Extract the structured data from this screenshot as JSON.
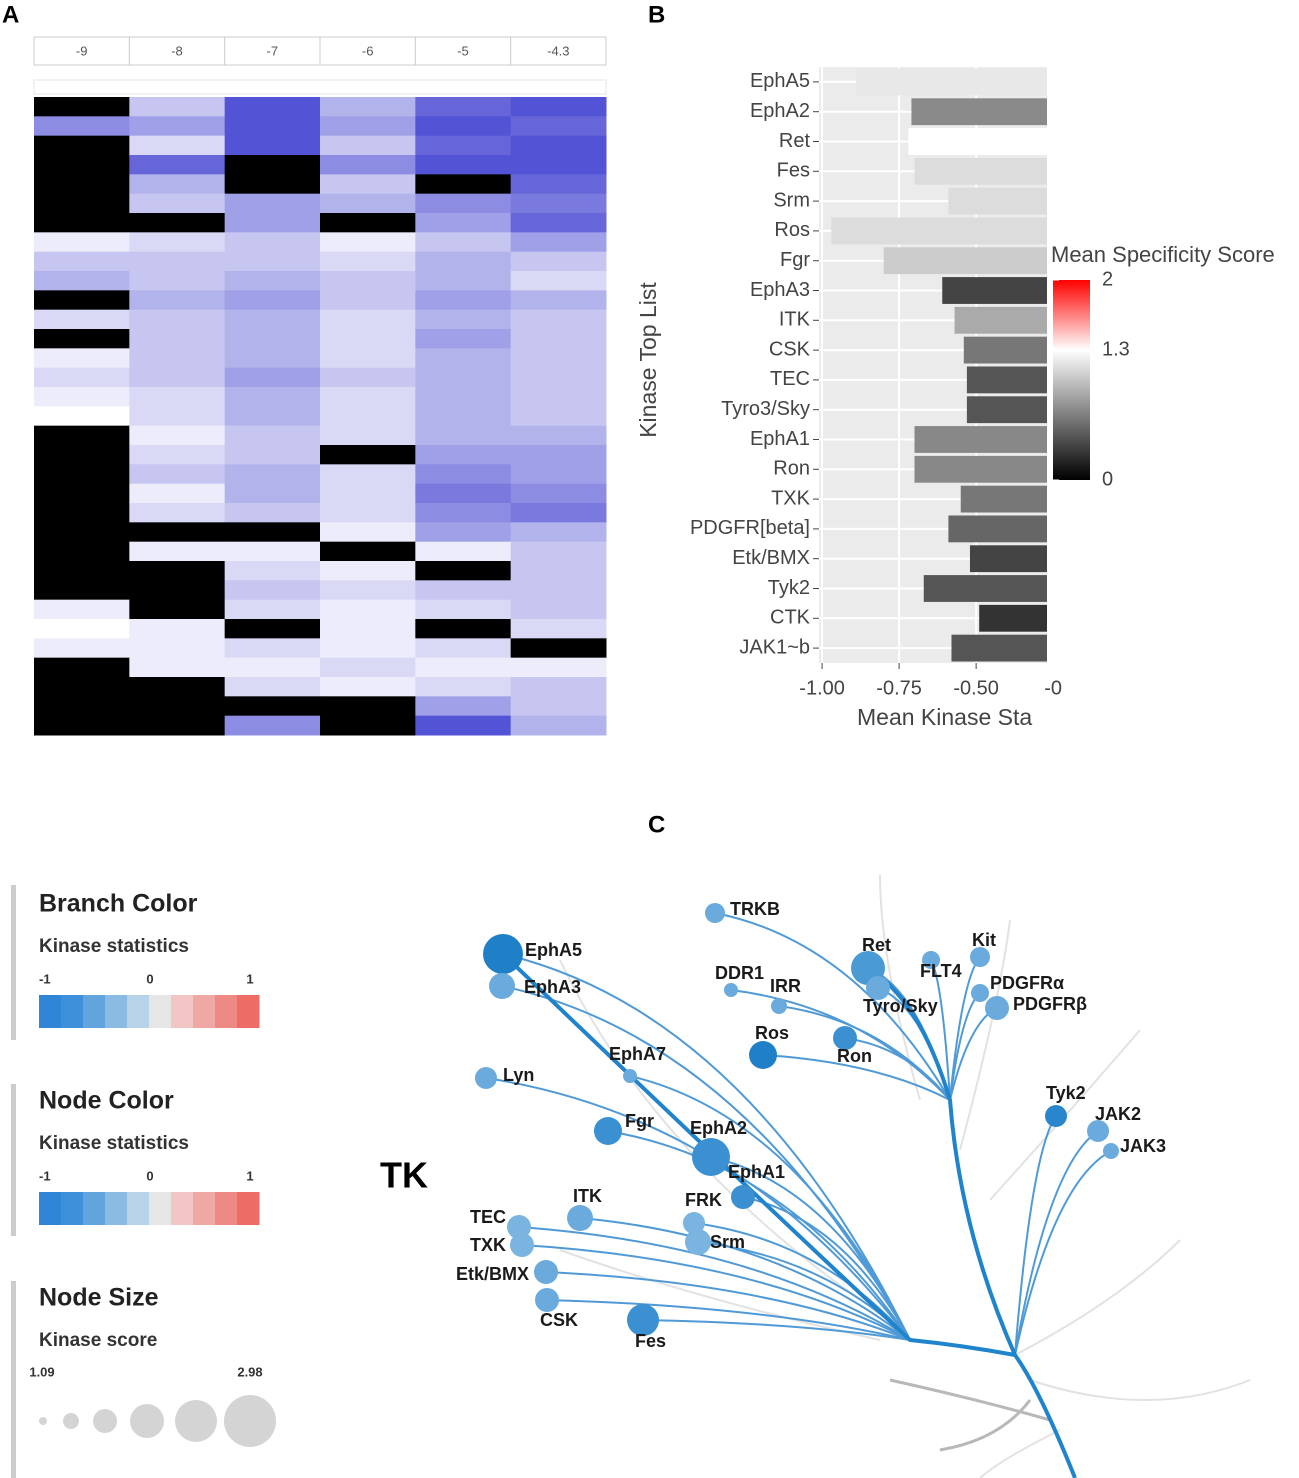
{
  "chart_data": [
    {
      "type": "heatmap",
      "panel": "A",
      "categories": [
        "-9",
        "-8",
        "-7",
        "-6",
        "-5",
        "-4.3"
      ],
      "low_color": "#ffffff",
      "high_color": "#4040d0",
      "missing_color": "#000000",
      "matrix": [
        [
          null,
          0.3,
          0.9,
          0.4,
          0.8,
          0.9
        ],
        [
          0.6,
          0.5,
          0.9,
          0.5,
          0.9,
          0.8
        ],
        [
          null,
          0.2,
          0.9,
          0.3,
          0.8,
          0.9
        ],
        [
          null,
          0.8,
          null,
          0.6,
          0.9,
          0.9
        ],
        [
          null,
          0.4,
          null,
          0.3,
          null,
          0.8
        ],
        [
          null,
          0.3,
          0.5,
          0.4,
          0.6,
          0.7
        ],
        [
          null,
          null,
          0.5,
          null,
          0.5,
          0.8
        ],
        [
          0.1,
          0.2,
          0.3,
          0.1,
          0.3,
          0.5
        ],
        [
          0.3,
          0.3,
          0.3,
          0.2,
          0.4,
          0.3
        ],
        [
          0.4,
          0.3,
          0.4,
          0.3,
          0.4,
          0.2
        ],
        [
          null,
          0.4,
          0.5,
          0.3,
          0.5,
          0.4
        ],
        [
          0.2,
          0.3,
          0.4,
          0.2,
          0.4,
          0.3
        ],
        [
          null,
          0.3,
          0.4,
          0.2,
          0.5,
          0.3
        ],
        [
          0.1,
          0.3,
          0.4,
          0.2,
          0.4,
          0.3
        ],
        [
          0.2,
          0.3,
          0.5,
          0.3,
          0.4,
          0.3
        ],
        [
          0.1,
          0.2,
          0.4,
          0.2,
          0.4,
          0.3
        ],
        [
          0.0,
          0.2,
          0.4,
          0.2,
          0.4,
          0.3
        ],
        [
          null,
          0.1,
          0.3,
          0.2,
          0.4,
          0.4
        ],
        [
          null,
          0.2,
          0.3,
          null,
          0.5,
          0.5
        ],
        [
          null,
          0.3,
          0.4,
          0.2,
          0.6,
          0.5
        ],
        [
          null,
          0.1,
          0.4,
          0.2,
          0.7,
          0.6
        ],
        [
          null,
          0.2,
          0.3,
          0.2,
          0.6,
          0.7
        ],
        [
          null,
          null,
          null,
          0.1,
          0.5,
          0.4
        ],
        [
          null,
          0.1,
          0.1,
          null,
          0.1,
          0.3
        ],
        [
          null,
          null,
          0.2,
          0.1,
          null,
          0.3
        ],
        [
          null,
          null,
          0.3,
          0.2,
          0.3,
          0.3
        ],
        [
          0.1,
          null,
          0.2,
          0.1,
          0.2,
          0.3
        ],
        [
          0.0,
          0.1,
          null,
          0.1,
          null,
          0.2
        ],
        [
          0.1,
          0.1,
          0.2,
          0.1,
          0.2,
          null
        ],
        [
          null,
          0.1,
          0.1,
          0.2,
          0.1,
          0.1
        ],
        [
          null,
          null,
          0.2,
          0.1,
          0.2,
          0.3
        ],
        [
          null,
          null,
          null,
          null,
          0.5,
          0.3
        ],
        [
          null,
          null,
          0.6,
          null,
          0.9,
          0.4
        ]
      ]
    },
    {
      "type": "hbar",
      "panel": "B",
      "y_label": "Kinase Top List",
      "x_label": "Mean Kinase Sta",
      "categories": [
        "EphA5",
        "EphA2",
        "Ret",
        "Fes",
        "Srm",
        "Ros",
        "Fgr",
        "EphA3",
        "ITK",
        "CSK",
        "TEC",
        "Tyro3/Sky",
        "EphA1",
        "Ron",
        "TXK",
        "PDGFR[beta]",
        "Etk/BMX",
        "Tyk2",
        "CTK",
        "JAK1~b"
      ],
      "values": [
        -0.89,
        -0.71,
        -0.72,
        -0.7,
        -0.59,
        -0.97,
        -0.8,
        -0.61,
        -0.57,
        -0.54,
        -0.53,
        -0.53,
        -0.7,
        -0.7,
        -0.55,
        -0.59,
        -0.52,
        -0.67,
        -0.49,
        -0.58
      ],
      "colors": [
        "#e8e8e8",
        "#8a8a8a",
        "#ffffff",
        "#dcdcdc",
        "#dcdcdc",
        "#dcdcdc",
        "#cccccc",
        "#444444",
        "#aaaaaa",
        "#777777",
        "#555555",
        "#555555",
        "#888888",
        "#888888",
        "#777777",
        "#666666",
        "#444444",
        "#555555",
        "#333333",
        "#555555"
      ],
      "xlim": [
        -1.01,
        -0.27
      ],
      "xticks": [
        {
          "value": -1.0,
          "label": "-1.00"
        },
        {
          "value": -0.75,
          "label": "-0.75"
        },
        {
          "value": -0.5,
          "label": "-0.50"
        },
        {
          "value": -0.25,
          "label": "-0"
        }
      ],
      "grid": true,
      "colorbar": {
        "title": "Mean Specificity Score",
        "lim": [
          0,
          2
        ],
        "ticks": [
          0,
          1.3,
          2
        ],
        "colors": [
          "#000000",
          "#ffffff",
          "#ff0000"
        ]
      }
    }
  ],
  "tree": {
    "panel": "C",
    "group": "TK",
    "legends": [
      {
        "title": "Branch Color",
        "subtitle": "Kinase statistics",
        "labels": [
          "-1",
          "0",
          "1"
        ]
      },
      {
        "title": "Node Color",
        "subtitle": "Kinase statistics",
        "labels": [
          "-1",
          "0",
          "1"
        ]
      },
      {
        "title": "Node Size",
        "subtitle": "Kinase score",
        "range": [
          1.09,
          2.98
        ]
      }
    ],
    "nodes": [
      {
        "label": "EphA5",
        "score": 2.44,
        "color": "#1f80c8"
      },
      {
        "label": "EphA3",
        "score": 1.81,
        "color": "#6aaadc"
      },
      {
        "label": "TRKB",
        "score": 1.54,
        "color": "#6aaadc"
      },
      {
        "label": "DDR1",
        "score": 1.27,
        "color": "#6aaadc"
      },
      {
        "label": "IRR",
        "score": 1.36,
        "color": "#6aaadc"
      },
      {
        "label": "Ret",
        "score": 2.17,
        "color": "#4a9ad6"
      },
      {
        "label": "Tyro/Sky",
        "score": 1.72,
        "color": "#6aaadc"
      },
      {
        "label": "FLT4",
        "score": 1.45,
        "color": "#6aaadc"
      },
      {
        "label": "Kit",
        "score": 1.54,
        "color": "#6aaadc"
      },
      {
        "label": "PDGFRα",
        "score": 1.45,
        "color": "#6aaadc"
      },
      {
        "label": "PDGFRβ",
        "score": 1.72,
        "color": "#6aaadc"
      },
      {
        "label": "Ros",
        "score": 1.9,
        "color": "#1f80c8"
      },
      {
        "label": "Ron",
        "score": 1.72,
        "color": "#3a90d0"
      },
      {
        "label": "EphA7",
        "score": 1.27,
        "color": "#6aaadc"
      },
      {
        "label": "Lyn",
        "score": 1.63,
        "color": "#6aaadc"
      },
      {
        "label": "Fgr",
        "score": 1.9,
        "color": "#3a90d0"
      },
      {
        "label": "EphA2",
        "score": 2.35,
        "color": "#3a90d0"
      },
      {
        "label": "EphA1",
        "score": 1.72,
        "color": "#3a90d0"
      },
      {
        "label": "Tyk2",
        "score": 1.63,
        "color": "#2a86cc"
      },
      {
        "label": "JAK2",
        "score": 1.63,
        "color": "#6aaadc"
      },
      {
        "label": "JAK3",
        "score": 1.36,
        "color": "#6aaadc"
      },
      {
        "label": "ITK",
        "score": 1.81,
        "color": "#6aaadc"
      },
      {
        "label": "TEC",
        "score": 1.72,
        "color": "#7ab4e0"
      },
      {
        "label": "TXK",
        "score": 1.72,
        "color": "#7ab4e0"
      },
      {
        "label": "Etk/BMX",
        "score": 1.72,
        "color": "#6aaadc"
      },
      {
        "label": "CSK",
        "score": 1.72,
        "color": "#6aaadc"
      },
      {
        "label": "FRK",
        "score": 1.63,
        "color": "#7ab4e0"
      },
      {
        "label": "Srm",
        "score": 1.81,
        "color": "#7ab4e0"
      },
      {
        "label": "Fes",
        "score": 2.08,
        "color": "#3a90d0"
      }
    ]
  }
}
